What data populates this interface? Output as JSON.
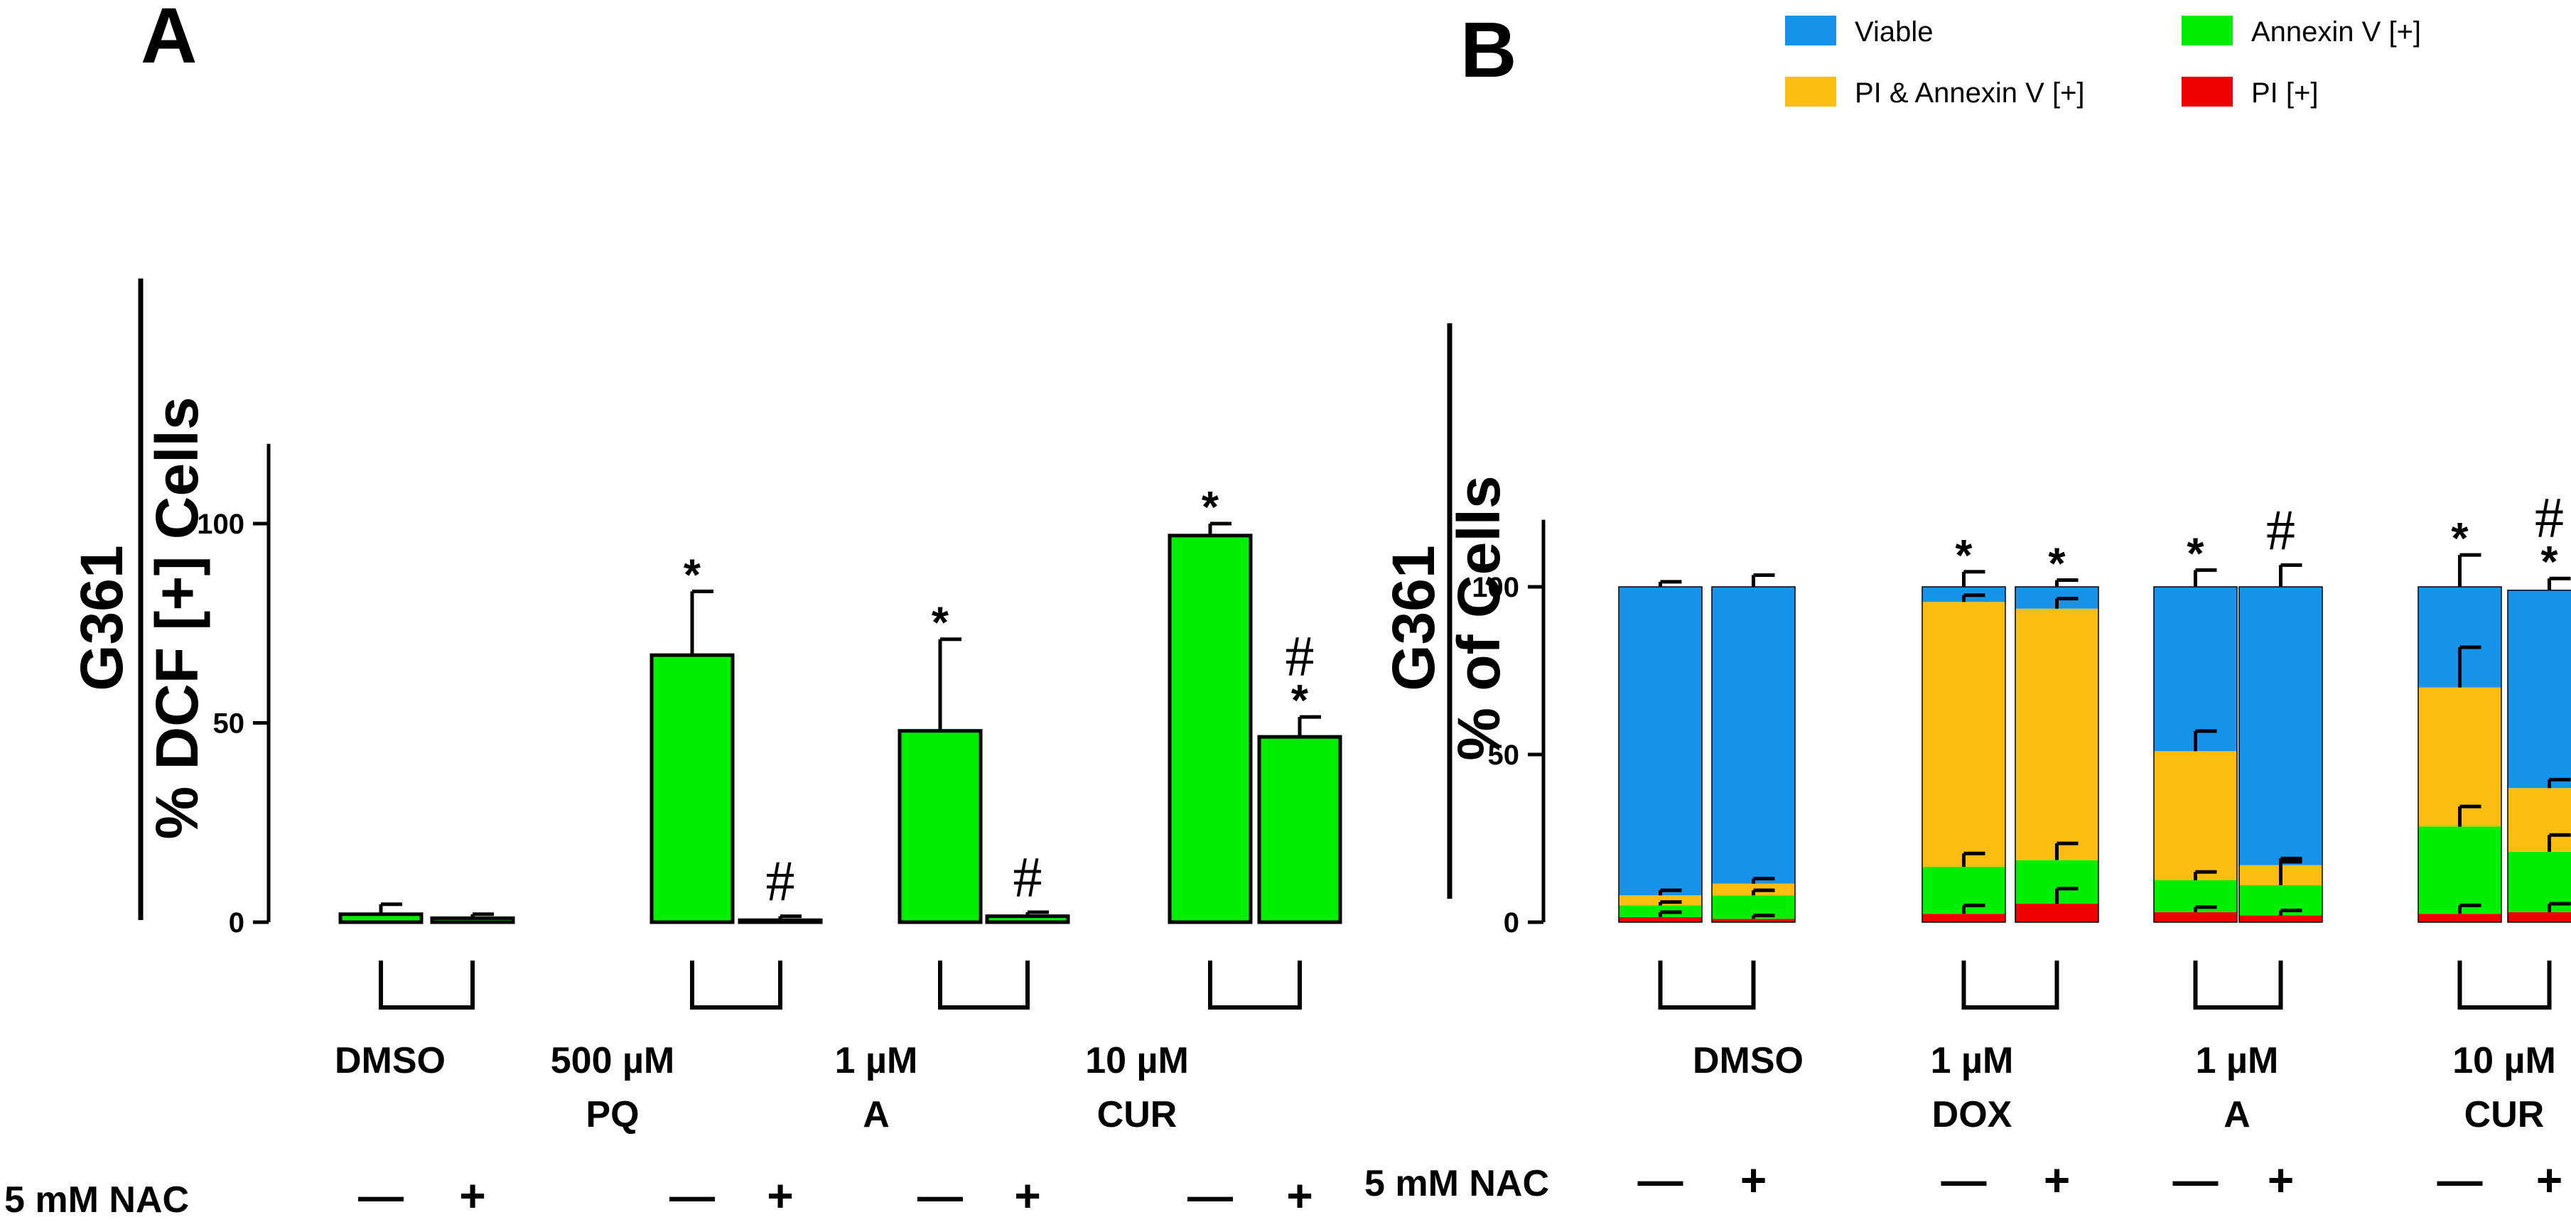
{
  "chart_data": [
    {
      "type": "bar",
      "panel": "A",
      "ylabel": "G361",
      "ylabel2": "% DCF [+] Cells",
      "ylim": [
        0,
        120
      ],
      "yticks": [
        "0",
        "50",
        "100"
      ],
      "nac_label": "5 mM NAC",
      "nac_signs": [
        "—",
        "+"
      ],
      "bar_color": "#00ee00",
      "groups": [
        {
          "label1": "DMSO",
          "label2": ""
        },
        {
          "label1": "500 µM",
          "label2": "PQ"
        },
        {
          "label1": "1 µM",
          "label2": "A"
        },
        {
          "label1": "10 µM",
          "label2": "CUR"
        }
      ],
      "bars": [
        {
          "value": 2,
          "error": 2.5,
          "sig": []
        },
        {
          "value": 1,
          "error": 1,
          "sig": []
        },
        {
          "value": 67,
          "error": 16,
          "sig": [
            "*"
          ]
        },
        {
          "value": 0.5,
          "error": 1,
          "sig": [
            "#"
          ]
        },
        {
          "value": 48,
          "error": 23,
          "sig": [
            "*"
          ]
        },
        {
          "value": 1.5,
          "error": 1,
          "sig": [
            "#"
          ]
        },
        {
          "value": 97,
          "error": 3,
          "sig": [
            "*"
          ]
        },
        {
          "value": 46.5,
          "error": 5,
          "sig": [
            "*",
            "#"
          ]
        }
      ]
    },
    {
      "type": "stacked-bar",
      "panel": "B",
      "ylabel": "G361",
      "ylabel2": "% of Cells",
      "ylim": [
        0,
        120
      ],
      "yticks": [
        "0",
        "50",
        "100"
      ],
      "nac_label": "5 mM NAC",
      "nac_signs": [
        "—",
        "+"
      ],
      "legend": [
        {
          "name": "Viable",
          "color": "#1793ea"
        },
        {
          "name": "Annexin V [+]",
          "color": "#00ee00"
        },
        {
          "name": "PI & Annexin V [+]",
          "color": "#fbbe10"
        },
        {
          "name": "PI [+]",
          "color": "#ee0000"
        }
      ],
      "groups": [
        {
          "label1": "DMSO",
          "label2": ""
        },
        {
          "label1": "1 µM",
          "label2": "DOX"
        },
        {
          "label1": "1 µM",
          "label2": "A"
        },
        {
          "label1": "10 µM",
          "label2": "CUR"
        }
      ],
      "bars": [
        {
          "pi": 1.5,
          "annexin": 3.5,
          "pi_annexin": 3,
          "viable": 92,
          "errors": [
            1.5,
            1,
            1.5,
            1.5
          ],
          "sig": []
        },
        {
          "pi": 1,
          "annexin": 7,
          "pi_annexin": 3.5,
          "viable": 88.5,
          "errors": [
            1,
            1.5,
            1.5,
            3.5
          ],
          "sig": []
        },
        {
          "pi": 2.5,
          "annexin": 14,
          "pi_annexin": 79,
          "viable": 4.5,
          "errors": [
            2.5,
            4,
            2,
            4.5
          ],
          "sig": [
            "*"
          ]
        },
        {
          "pi": 5.5,
          "annexin": 13,
          "pi_annexin": 75,
          "viable": 6.5,
          "errors": [
            4.5,
            5,
            3,
            2
          ],
          "sig": [
            "*"
          ]
        },
        {
          "pi": 3,
          "annexin": 9.5,
          "pi_annexin": 38.5,
          "viable": 49,
          "errors": [
            1.5,
            2.5,
            6,
            5
          ],
          "sig": [
            "*"
          ]
        },
        {
          "pi": 2,
          "annexin": 9,
          "pi_annexin": 6,
          "viable": 83,
          "errors": [
            1.5,
            7,
            2,
            6.5
          ],
          "sig": [
            "#"
          ]
        },
        {
          "pi": 2.5,
          "annexin": 26,
          "pi_annexin": 41.5,
          "viable": 30,
          "errors": [
            2.5,
            6,
            12,
            9.5
          ],
          "sig": [
            "*"
          ]
        },
        {
          "pi": 3,
          "annexin": 18,
          "pi_annexin": 19,
          "viable": 59,
          "errors": [
            2.5,
            5,
            2.5,
            3.5
          ],
          "sig": [
            "*",
            "#"
          ]
        }
      ]
    }
  ]
}
